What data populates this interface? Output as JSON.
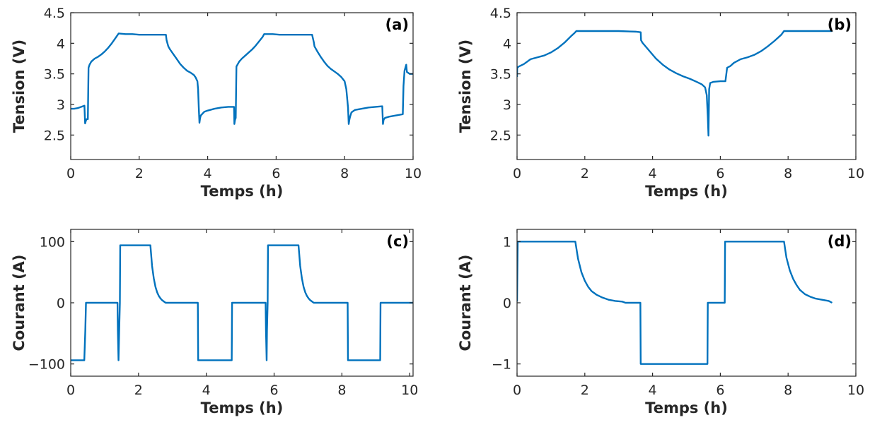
{
  "chart_data": [
    {
      "type": "line",
      "panel_label": "(a)",
      "xlabel": "Temps (h)",
      "ylabel": "Tension (V)",
      "xlim": [
        0,
        10
      ],
      "ylim": [
        2.1,
        4.5
      ],
      "xticks": [
        0,
        2,
        4,
        6,
        8,
        10
      ],
      "xtick_labels": [
        "0",
        "2",
        "4",
        "6",
        "8",
        "10"
      ],
      "yticks": [
        2.5,
        3,
        3.5,
        4,
        4.5
      ],
      "ytick_labels": [
        "2.5",
        "3",
        "3.5",
        "4",
        "4.5"
      ],
      "color": "#0072BD",
      "series": [
        {
          "x": [
            0,
            0.1,
            0.2,
            0.3,
            0.4,
            0.42,
            0.44,
            0.46,
            0.5,
            0.52,
            0.55,
            0.6,
            0.7,
            0.8,
            0.9,
            1.0,
            1.1,
            1.2,
            1.3,
            1.35,
            1.4,
            1.6,
            1.8,
            2.0,
            2.2,
            2.4,
            2.6,
            2.78,
            2.8,
            2.85,
            2.9,
            3.0,
            3.1,
            3.2,
            3.3,
            3.4,
            3.5,
            3.6,
            3.65,
            3.7,
            3.72,
            3.74,
            3.76,
            3.78,
            3.8,
            3.9,
            4.0,
            4.2,
            4.4,
            4.6,
            4.77,
            4.78,
            4.8,
            4.82,
            4.84,
            4.88,
            4.92,
            5.0,
            5.1,
            5.2,
            5.3,
            5.4,
            5.5,
            5.6,
            5.65,
            5.7,
            5.9,
            6.1,
            6.3,
            6.5,
            6.7,
            6.9,
            7.05,
            7.1,
            7.12,
            7.2,
            7.3,
            7.4,
            7.5,
            7.6,
            7.7,
            7.8,
            7.9,
            8.0,
            8.05,
            8.1,
            8.12,
            8.14,
            8.16,
            8.2,
            8.3,
            8.5,
            8.7,
            8.9,
            9.1,
            9.12,
            9.14,
            9.18,
            9.3,
            9.5,
            9.7,
            9.72,
            9.75,
            9.8,
            9.82,
            9.85,
            9.9,
            10.0
          ],
          "values": [
            2.93,
            2.93,
            2.94,
            2.96,
            2.98,
            2.69,
            2.73,
            2.76,
            2.76,
            3.6,
            3.65,
            3.7,
            3.75,
            3.78,
            3.82,
            3.87,
            3.93,
            4.0,
            4.08,
            4.12,
            4.16,
            4.15,
            4.15,
            4.14,
            4.14,
            4.14,
            4.14,
            4.14,
            4.05,
            3.95,
            3.9,
            3.82,
            3.74,
            3.66,
            3.6,
            3.55,
            3.52,
            3.48,
            3.44,
            3.38,
            3.25,
            2.95,
            2.7,
            2.78,
            2.82,
            2.88,
            2.9,
            2.93,
            2.95,
            2.96,
            2.96,
            2.68,
            2.75,
            2.78,
            3.62,
            3.66,
            3.7,
            3.75,
            3.8,
            3.85,
            3.9,
            3.96,
            4.03,
            4.1,
            4.15,
            4.15,
            4.15,
            4.14,
            4.14,
            4.14,
            4.14,
            4.14,
            4.14,
            4.02,
            3.95,
            3.87,
            3.78,
            3.7,
            3.63,
            3.58,
            3.54,
            3.5,
            3.45,
            3.38,
            3.25,
            2.95,
            2.68,
            2.75,
            2.8,
            2.87,
            2.91,
            2.93,
            2.95,
            2.96,
            2.97,
            2.68,
            2.75,
            2.78,
            2.8,
            2.82,
            2.84,
            3.3,
            3.55,
            3.65,
            3.53,
            3.52,
            3.5,
            3.5
          ]
        }
      ]
    },
    {
      "type": "line",
      "panel_label": "(b)",
      "xlabel": "Temps (h)",
      "ylabel": "Tension (V)",
      "xlim": [
        0,
        10
      ],
      "ylim": [
        2.1,
        4.5
      ],
      "xticks": [
        0,
        2,
        4,
        6,
        8,
        10
      ],
      "xtick_labels": [
        "0",
        "2",
        "4",
        "6",
        "8",
        "10"
      ],
      "yticks": [
        2.5,
        3,
        3.5,
        4,
        4.5
      ],
      "ytick_labels": [
        "2.5",
        "3",
        "3.5",
        "4",
        "4.5"
      ],
      "color": "#0072BD",
      "series": [
        {
          "x": [
            0,
            0.005,
            0.05,
            0.2,
            0.4,
            0.6,
            0.8,
            1.0,
            1.2,
            1.4,
            1.6,
            1.7,
            1.75,
            2.0,
            2.5,
            3.0,
            3.5,
            3.65,
            3.66,
            3.7,
            3.9,
            4.1,
            4.3,
            4.5,
            4.7,
            4.9,
            5.1,
            5.3,
            5.45,
            5.55,
            5.6,
            5.63,
            5.65,
            5.67,
            5.7,
            5.8,
            6.0,
            6.15,
            6.2,
            6.3,
            6.4,
            6.6,
            6.8,
            7.0,
            7.2,
            7.4,
            7.6,
            7.8,
            7.88,
            8.2,
            8.6,
            9.0,
            9.3
          ],
          "values": [
            3.45,
            3.6,
            3.62,
            3.66,
            3.74,
            3.77,
            3.8,
            3.85,
            3.92,
            4.01,
            4.12,
            4.17,
            4.2,
            4.2,
            4.2,
            4.2,
            4.19,
            4.18,
            4.05,
            4.01,
            3.88,
            3.75,
            3.65,
            3.57,
            3.51,
            3.46,
            3.42,
            3.37,
            3.33,
            3.28,
            3.15,
            2.8,
            2.49,
            3.25,
            3.35,
            3.37,
            3.38,
            3.38,
            3.6,
            3.63,
            3.68,
            3.74,
            3.77,
            3.81,
            3.87,
            3.95,
            4.04,
            4.14,
            4.2,
            4.2,
            4.2,
            4.2,
            4.2
          ]
        }
      ]
    },
    {
      "type": "line",
      "panel_label": "(c)",
      "xlabel": "Temps (h)",
      "ylabel": "Courant (A)",
      "xlim": [
        0,
        10.1
      ],
      "ylim": [
        -120,
        120
      ],
      "xticks": [
        0,
        2,
        4,
        6,
        8,
        10
      ],
      "xtick_labels": [
        "0",
        "2",
        "4",
        "6",
        "8",
        "10"
      ],
      "yticks": [
        -100,
        0,
        100
      ],
      "ytick_labels": [
        "−100",
        "0",
        "100"
      ],
      "color": "#0072BD",
      "series": [
        {
          "x": [
            0,
            0.4,
            0.43,
            0.45,
            1.38,
            1.39,
            1.41,
            1.43,
            1.45,
            1.46,
            2.35,
            2.4,
            2.45,
            2.5,
            2.55,
            2.6,
            2.65,
            2.7,
            2.75,
            2.8,
            3.75,
            3.76,
            4.75,
            4.76,
            5.75,
            5.76,
            5.78,
            5.79,
            5.81,
            5.82,
            5.83,
            6.72,
            6.77,
            6.82,
            6.87,
            6.92,
            6.97,
            7.02,
            7.07,
            7.12,
            7.17,
            8.17,
            8.18,
            9.13,
            9.14,
            10.1
          ],
          "values": [
            -94,
            -94,
            -45,
            0,
            0,
            -45,
            -94,
            -45,
            0,
            94,
            94,
            60,
            40,
            26,
            17,
            11,
            7,
            4,
            2,
            0,
            0,
            -94,
            -94,
            0,
            0,
            -45,
            -94,
            -45,
            0,
            94,
            94,
            94,
            60,
            40,
            26,
            17,
            11,
            7,
            4,
            2,
            0,
            0,
            -94,
            -94,
            0,
            0
          ]
        }
      ]
    },
    {
      "type": "line",
      "panel_label": "(d)",
      "xlabel": "Temps (h)",
      "ylabel": "Courant (A)",
      "xlim": [
        0,
        10
      ],
      "ylim": [
        -1.2,
        1.2
      ],
      "xticks": [
        0,
        2,
        4,
        6,
        8,
        10
      ],
      "xtick_labels": [
        "0",
        "2",
        "4",
        "6",
        "8",
        "10"
      ],
      "yticks": [
        -1,
        0,
        1
      ],
      "ytick_labels": [
        "−1",
        "0",
        "1"
      ],
      "color": "#0072BD",
      "series": [
        {
          "x": [
            0,
            0.02,
            0.03,
            1.72,
            1.8,
            1.9,
            2.0,
            2.1,
            2.2,
            2.35,
            2.5,
            2.7,
            2.9,
            3.1,
            3.2,
            3.64,
            3.65,
            5.62,
            5.63,
            6.13,
            6.14,
            7.88,
            7.95,
            8.05,
            8.15,
            8.25,
            8.35,
            8.5,
            8.65,
            8.8,
            9.0,
            9.2,
            9.3
          ],
          "values": [
            0.02,
            0.99,
            1.0,
            1.0,
            0.72,
            0.5,
            0.36,
            0.26,
            0.19,
            0.13,
            0.09,
            0.05,
            0.03,
            0.02,
            0.0,
            0.0,
            -1.0,
            -1.0,
            0.0,
            0.0,
            1.0,
            1.0,
            0.74,
            0.53,
            0.39,
            0.29,
            0.21,
            0.14,
            0.1,
            0.07,
            0.05,
            0.03,
            0.0
          ]
        }
      ]
    }
  ]
}
